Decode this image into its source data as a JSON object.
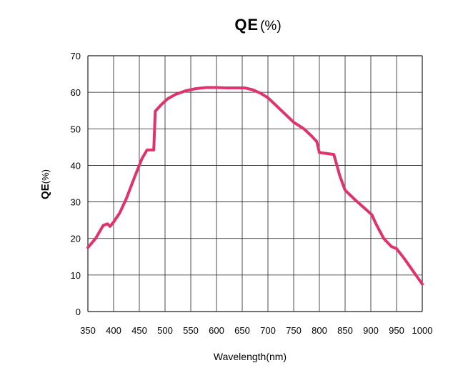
{
  "chart_data": {
    "type": "line",
    "title": "QE",
    "title_unit": "(%)",
    "xlabel": "Wavelength(nm)",
    "ylabel": "QE",
    "ylabel_unit": "(%)",
    "xlim": [
      350,
      1000
    ],
    "ylim": [
      0,
      70
    ],
    "x_ticks": [
      350,
      400,
      450,
      500,
      550,
      600,
      650,
      700,
      750,
      800,
      850,
      900,
      950,
      1000
    ],
    "y_ticks": [
      0,
      10,
      20,
      30,
      40,
      50,
      60,
      70
    ],
    "grid": true,
    "series": [
      {
        "name": "QE",
        "color": "#e0336e",
        "x": [
          350,
          365,
          380,
          388,
          393,
          400,
          412,
          425,
          440,
          455,
          465,
          478,
          481,
          492,
          505,
          520,
          540,
          560,
          580,
          600,
          620,
          640,
          655,
          670,
          685,
          700,
          715,
          730,
          750,
          770,
          785,
          795,
          800,
          812,
          828,
          840,
          850,
          870,
          890,
          902,
          910,
          925,
          940,
          950,
          965,
          980,
          990,
          1000
        ],
        "y": [
          17.5,
          20,
          23.6,
          24,
          23.3,
          24.5,
          27,
          31,
          36.5,
          41.8,
          44.2,
          44.2,
          54.8,
          56.5,
          58.2,
          59.4,
          60.4,
          61,
          61.3,
          61.3,
          61.2,
          61.2,
          61.2,
          60.7,
          59.8,
          58.5,
          56.5,
          54.5,
          51.8,
          50,
          48,
          46.5,
          43.5,
          43.3,
          43,
          37,
          33.2,
          30.5,
          28,
          26.5,
          24,
          20,
          17.8,
          17.2,
          14.5,
          11.5,
          9.5,
          7.5
        ]
      }
    ]
  }
}
